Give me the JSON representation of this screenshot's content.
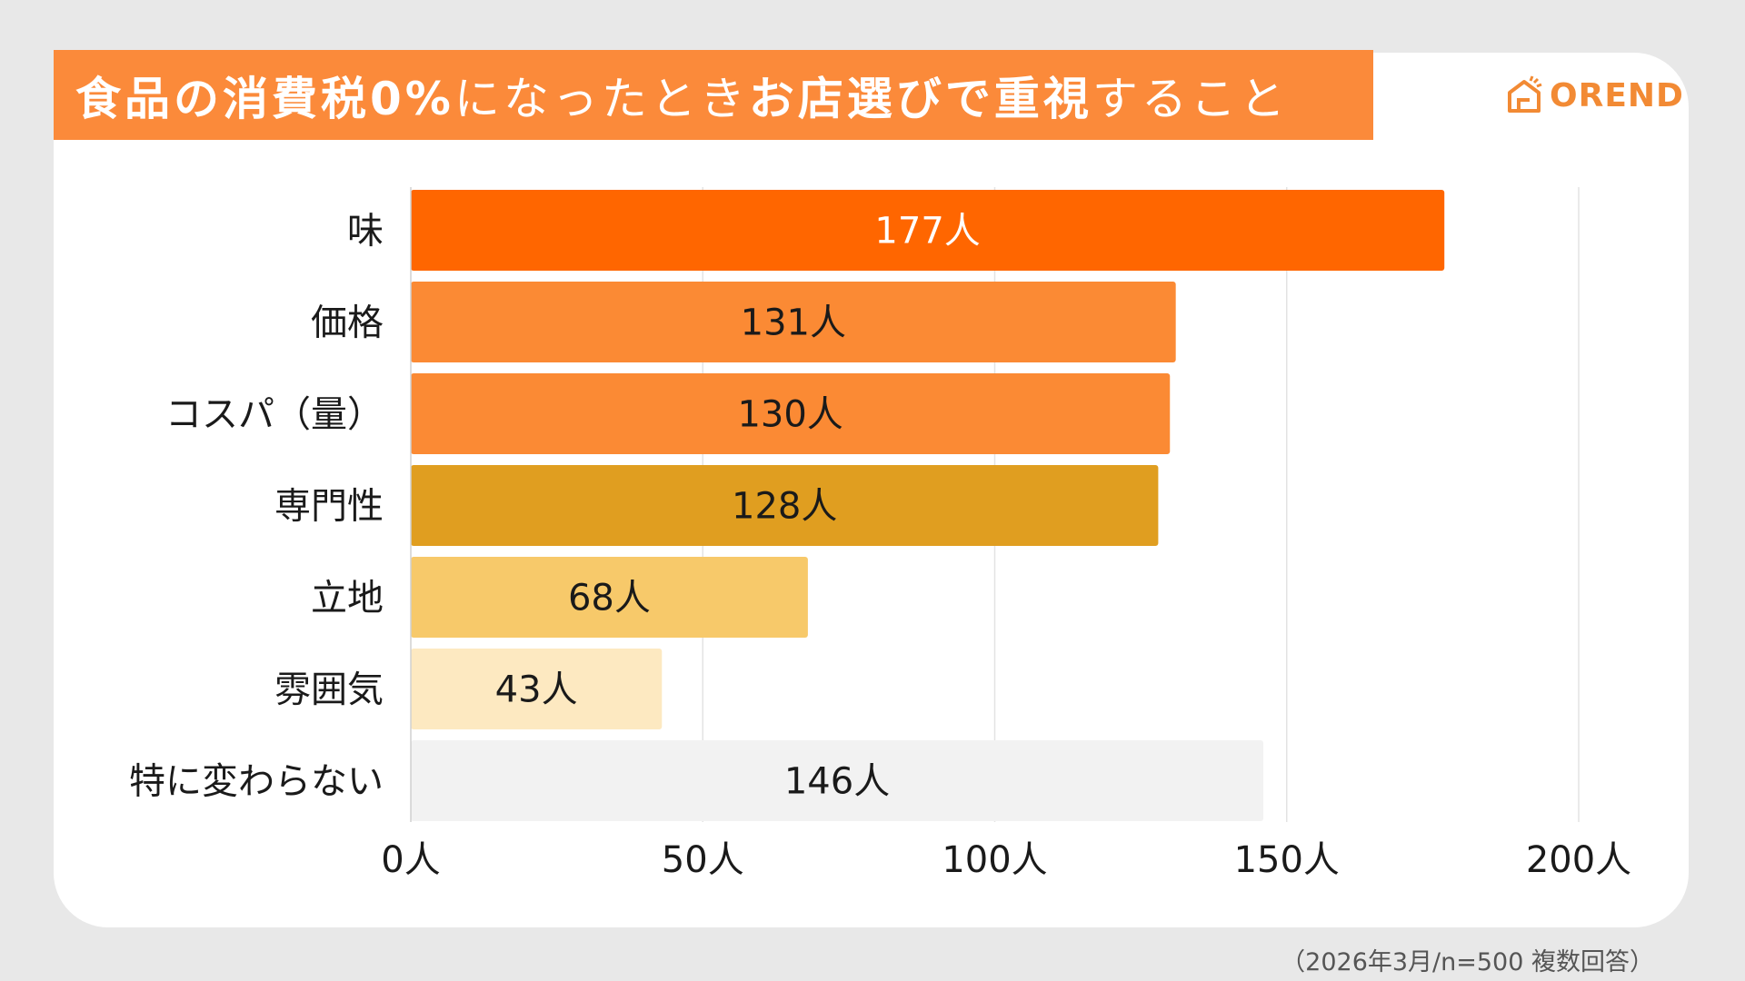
{
  "header": {
    "title_parts": [
      {
        "text": "食品の消費税0%",
        "weight": "strong"
      },
      {
        "text": "になったとき",
        "weight": "light"
      },
      {
        "text": "お店選びで重視",
        "weight": "strong"
      },
      {
        "text": "すること",
        "weight": "light"
      }
    ],
    "logo_text": "OREND",
    "logo_icon": "house-icon",
    "banner_color": "#fb8a3a",
    "logo_color": "#f28a34"
  },
  "footnote": "（2026年3月/n=500 複数回答）",
  "chart_data": {
    "type": "bar",
    "orientation": "horizontal",
    "title": "食品の消費税0%になったときお店選びで重視すること",
    "unit": "人",
    "categories": [
      "味",
      "価格",
      "コスパ（量）",
      "専門性",
      "立地",
      "雰囲気",
      "特に変わらない"
    ],
    "values": [
      177,
      131,
      130,
      128,
      68,
      43,
      146
    ],
    "value_labels": [
      "177人",
      "131人",
      "130人",
      "128人",
      "68人",
      "43人",
      "146人"
    ],
    "bar_colors": [
      "#ff6600",
      "#fb8a34",
      "#fb8a34",
      "#e09e20",
      "#f7c96a",
      "#fde9c1",
      "#f2f2f2"
    ],
    "label_colors": [
      "#ffffff",
      "#1a1a1a",
      "#1a1a1a",
      "#1a1a1a",
      "#1a1a1a",
      "#1a1a1a",
      "#1a1a1a"
    ],
    "xlim": [
      0,
      200
    ],
    "xticks": [
      0,
      50,
      100,
      150,
      200
    ],
    "xtick_labels": [
      "0人",
      "50人",
      "100人",
      "150人",
      "200人"
    ],
    "grid": true
  }
}
